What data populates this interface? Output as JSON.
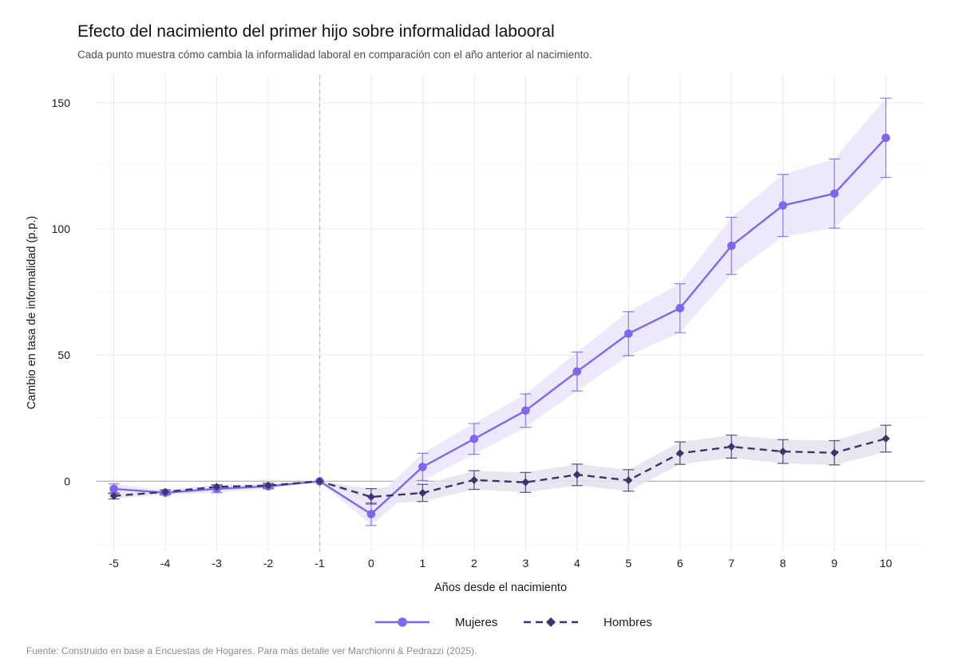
{
  "chart_data": {
    "type": "line",
    "title": "Efecto del nacimiento del primer hijo sobre informalidad labooral",
    "subtitle": "Cada punto muestra cómo cambia la informalidad laboral en comparación con el año anterior al nacimiento.",
    "xlabel": "Años desde el nacimiento",
    "ylabel": "Cambio en tasa de informalidad (p.p.)",
    "caption": "Fuente: Construido en base a Encuestas de Hogares. Para más detalle ver Marchionni & Pedrazzi (2025).",
    "x": [
      -5,
      -4,
      -3,
      -2,
      -1,
      0,
      1,
      2,
      3,
      4,
      5,
      6,
      7,
      8,
      9,
      10
    ],
    "x_tick_labels": [
      "-5",
      "-4",
      "-3",
      "-2",
      "-1",
      "0",
      "1",
      "2",
      "3",
      "4",
      "5",
      "6",
      "7",
      "8",
      "9",
      "10"
    ],
    "xlim": [
      -5.35,
      10.75
    ],
    "ylim": [
      -28,
      161
    ],
    "y_ticks": [
      0,
      50,
      100,
      150
    ],
    "y_tick_labels": [
      "0",
      "50",
      "100",
      "150"
    ],
    "reference_vline_x": -1,
    "reference_hline_y": 0,
    "grid": true,
    "legend_position": "bottom",
    "series": [
      {
        "name": "Mujeres",
        "color": "#7b68ee",
        "band_color": "#e8e5fc",
        "line_style": "solid",
        "marker": "circle",
        "values": [
          -3,
          -4.5,
          -3,
          -2,
          0,
          -13,
          5.7,
          16.8,
          28,
          43.5,
          58.5,
          68.6,
          93.3,
          109.3,
          114,
          136.1
        ],
        "lower": [
          -5,
          -5.5,
          -4.5,
          -3,
          0,
          -17.5,
          0.3,
          10.7,
          21.4,
          35.8,
          49.8,
          58.9,
          82,
          97,
          100.3,
          120.4
        ],
        "upper": [
          -1,
          -3.5,
          -1.5,
          -1,
          0,
          -8.5,
          11.1,
          22.9,
          34.6,
          51.2,
          67.2,
          78.3,
          104.6,
          121.6,
          127.7,
          151.8
        ]
      },
      {
        "name": "Hombres",
        "color": "#3d3370",
        "band_color": "#e4e3ee",
        "line_style": "dashed",
        "marker": "diamond",
        "values": [
          -5.8,
          -4.2,
          -2.2,
          -1.7,
          0,
          -6.2,
          -4.6,
          0.5,
          -0.4,
          2.6,
          0.4,
          11.1,
          13.7,
          11.8,
          11.3,
          16.9
        ],
        "lower": [
          -7,
          -5,
          -3,
          -2.6,
          0,
          -9,
          -8,
          -3.2,
          -4.4,
          -1.7,
          -3.9,
          6.7,
          9.2,
          7.1,
          6.5,
          11.6
        ],
        "upper": [
          -4.6,
          -3.4,
          -1.4,
          -0.8,
          0,
          -2.9,
          -1.2,
          4.2,
          3.5,
          6.8,
          4.6,
          15.6,
          18.3,
          16.5,
          16.1,
          22.2
        ]
      }
    ]
  }
}
